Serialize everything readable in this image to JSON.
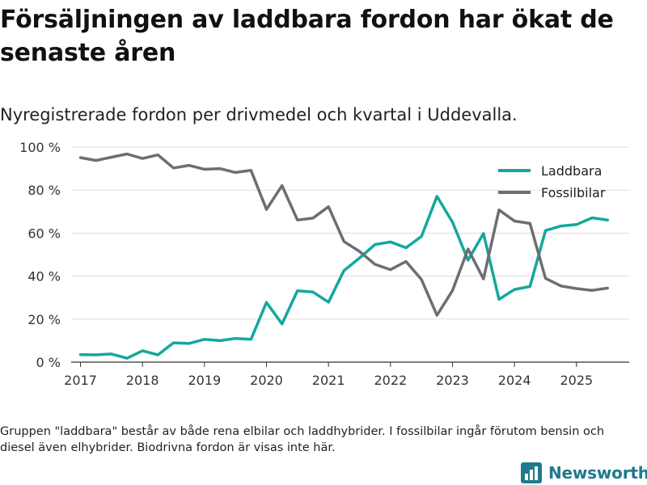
{
  "title": "Försäljningen av laddbara fordon har ökat de senaste åren",
  "subtitle": "Nyregistrerade fordon per drivmedel och kvartal i Uddevalla.",
  "footnote": "Gruppen \"laddbara\" består av både rena elbilar och laddhybrider. I fossilbilar ingår förutom bensin och diesel även elhybrider. Biodrivna fordon är visas inte här.",
  "brand": {
    "name": "Newsworthy",
    "icon": "bar-chart-logo-icon",
    "color": "#1f7a8c"
  },
  "chart_data": {
    "type": "line",
    "title": "Nyregistrerade fordon per drivmedel och kvartal i Uddevalla.",
    "xlabel": "",
    "ylabel": "",
    "ylim": [
      0,
      100
    ],
    "xlim": [
      2016.85,
      2025.85
    ],
    "y_ticks": [
      0,
      20,
      40,
      60,
      80,
      100
    ],
    "y_tick_labels": [
      "0 %",
      "20 %",
      "40 %",
      "60 %",
      "80 %",
      "100 %"
    ],
    "x_ticks": [
      2017,
      2018,
      2019,
      2020,
      2021,
      2022,
      2023,
      2024,
      2025
    ],
    "x_tick_labels": [
      "2017",
      "2018",
      "2019",
      "2020",
      "2021",
      "2022",
      "2023",
      "2024",
      "2025"
    ],
    "grid": true,
    "legend_position": "top-right",
    "x": [
      2017,
      2017.25,
      2017.5,
      2017.75,
      2018,
      2018.25,
      2018.5,
      2018.75,
      2019,
      2019.25,
      2019.5,
      2019.75,
      2020,
      2020.25,
      2020.5,
      2020.75,
      2021,
      2021.25,
      2021.5,
      2021.75,
      2022,
      2022.25,
      2022.5,
      2022.75,
      2023,
      2023.25,
      2023.5,
      2023.75,
      2024,
      2024.25,
      2024.5,
      2024.75,
      2025,
      2025.25,
      2025.5
    ],
    "series": [
      {
        "name": "Laddbara",
        "color": "#13a89e",
        "values": [
          3.5,
          3.4,
          3.8,
          1.8,
          5.3,
          3.4,
          9,
          8.7,
          10.6,
          10,
          11,
          10.6,
          27.8,
          17.8,
          33.2,
          32.6,
          27.9,
          42.6,
          48.4,
          54.7,
          55.9,
          53.2,
          58.5,
          77.1,
          65.1,
          47.4,
          59.8,
          29.2,
          33.8,
          35.2,
          61.2,
          63.3,
          64,
          67.1,
          66.1
        ]
      },
      {
        "name": "Fossilbilar",
        "color": "#6e6d72",
        "values": [
          95.1,
          93.8,
          95.3,
          96.8,
          94.7,
          96.4,
          90.3,
          91.5,
          89.7,
          90,
          88.2,
          89.2,
          71,
          82.1,
          66.1,
          67,
          72.3,
          56.1,
          51.5,
          45.5,
          43,
          46.8,
          38.4,
          21.8,
          33.3,
          52.6,
          38.7,
          70.8,
          65.6,
          64.5,
          39,
          35.4,
          34.2,
          33.4,
          34.4
        ]
      }
    ]
  }
}
